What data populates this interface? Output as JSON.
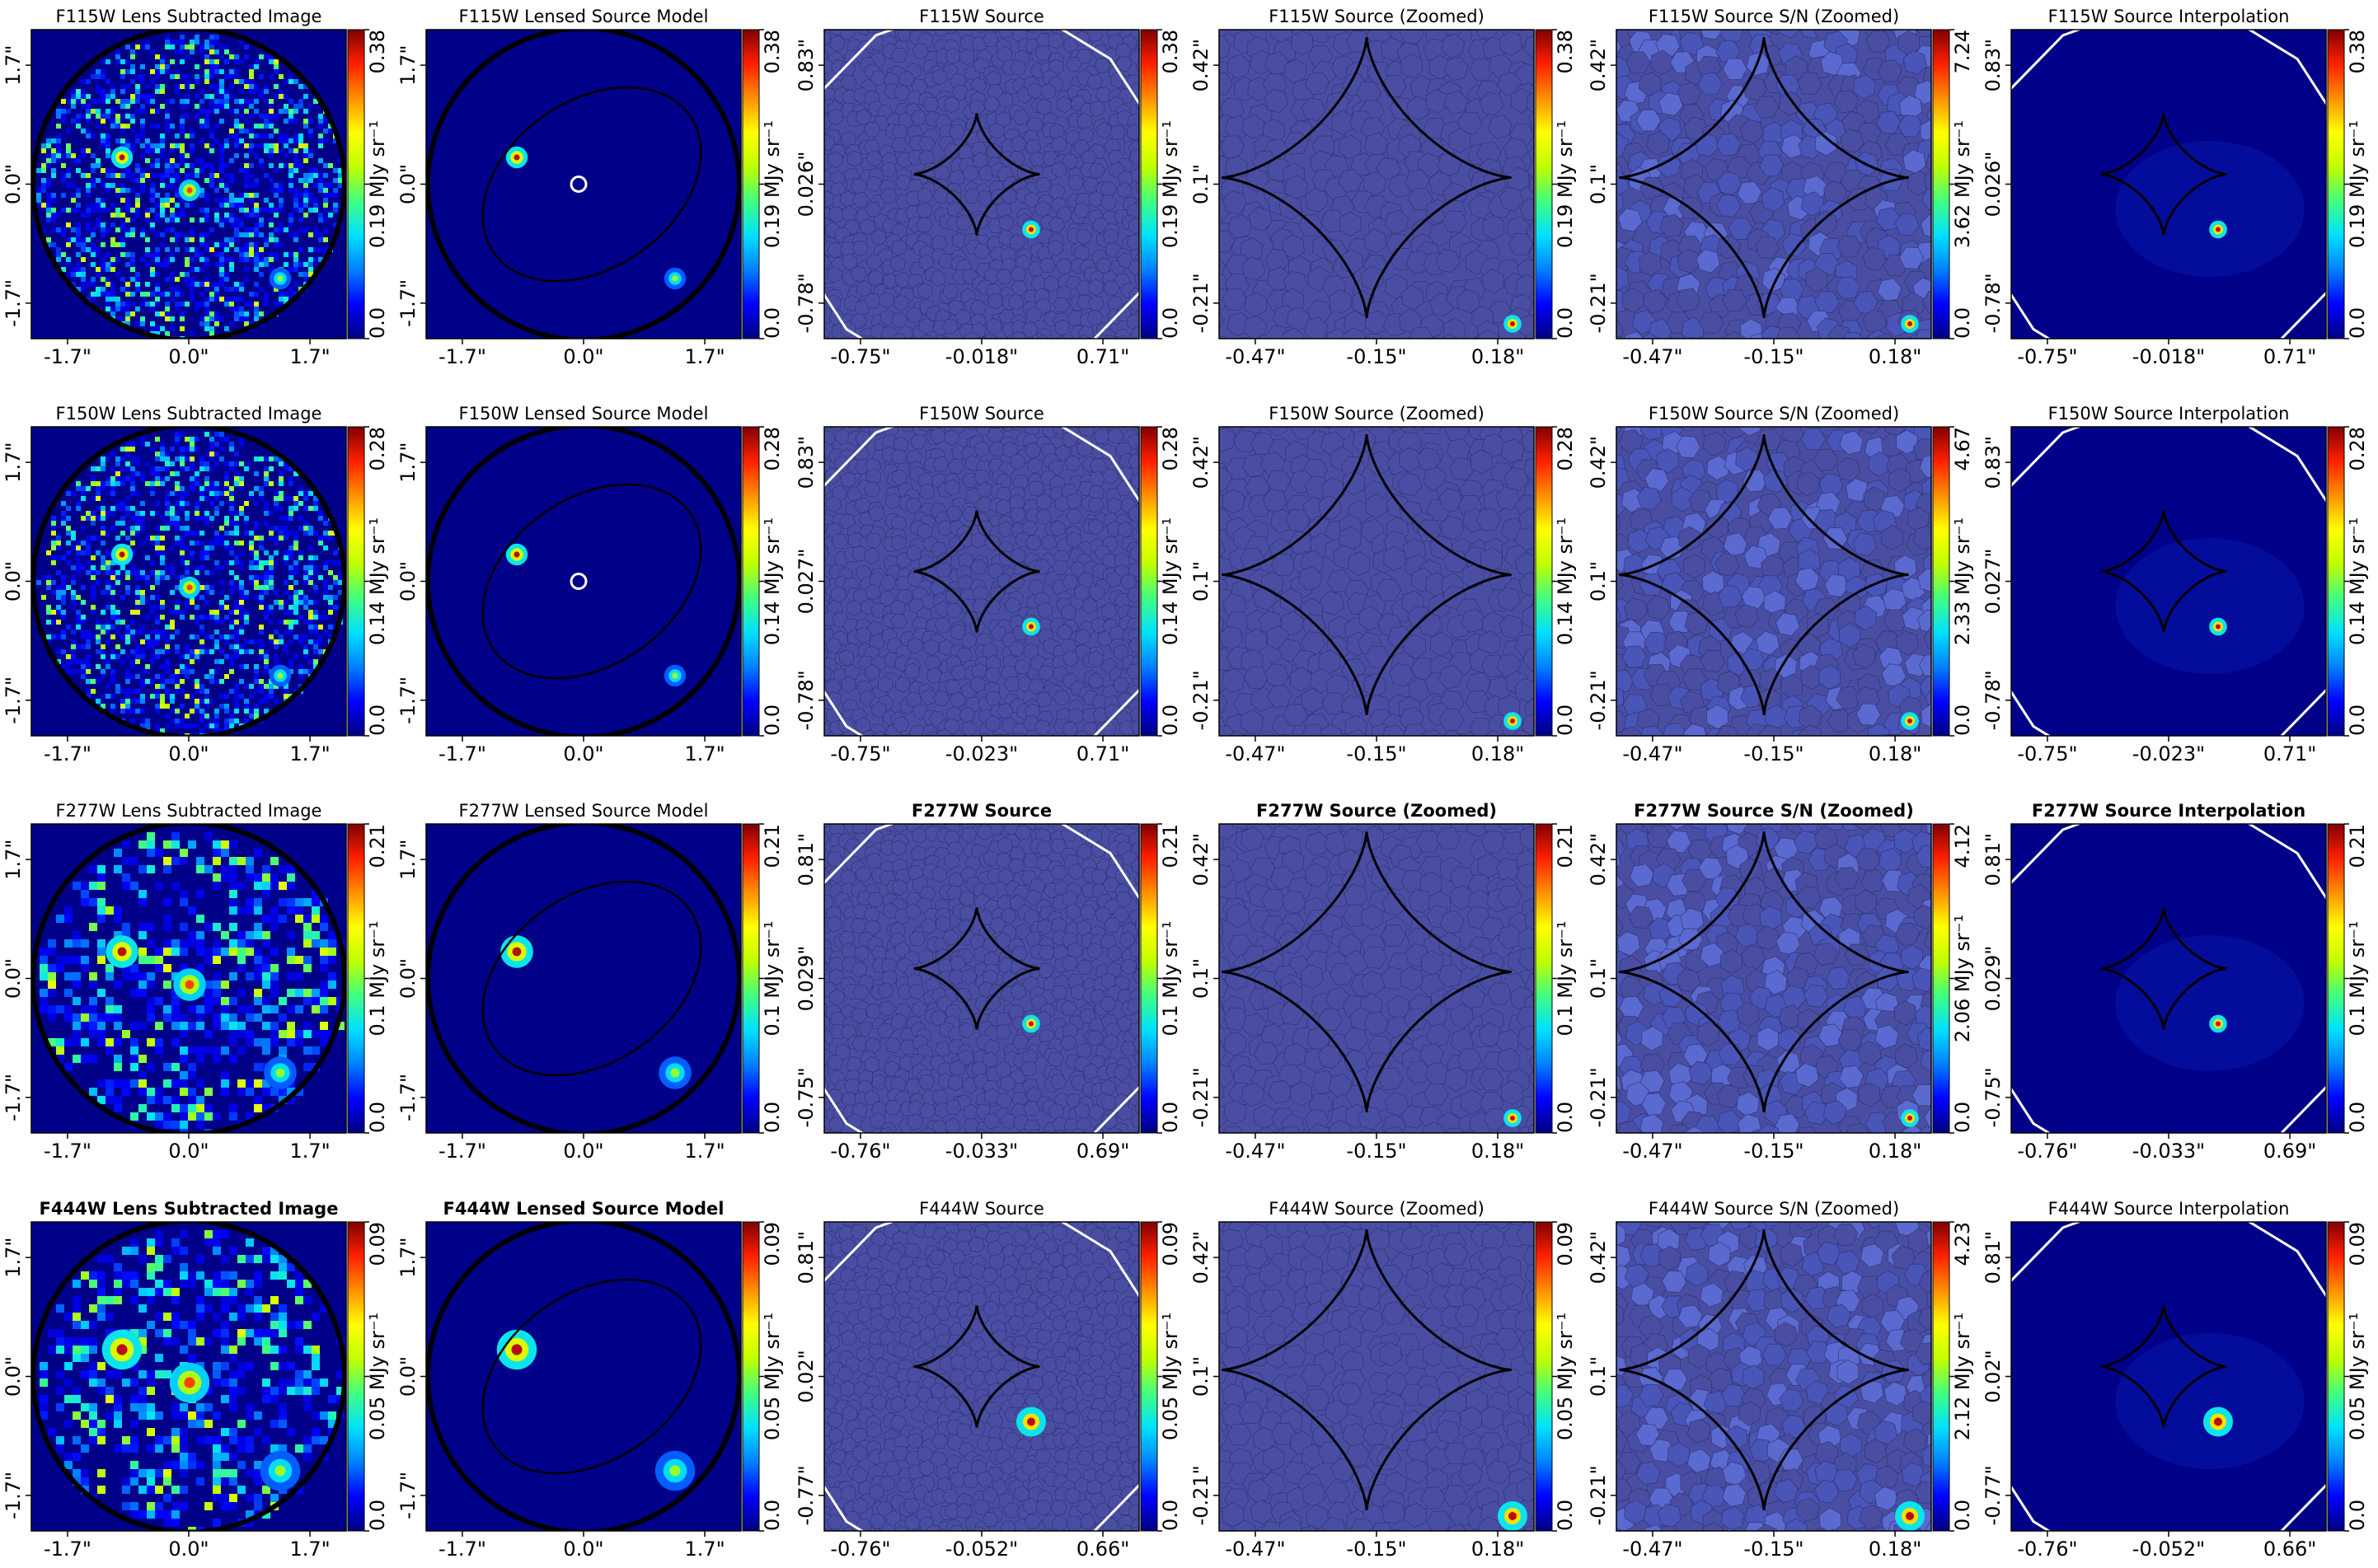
{
  "figure": {
    "colormap": [
      "#00007f",
      "#0000ff",
      "#0080ff",
      "#00e0ff",
      "#40ff80",
      "#c0ff00",
      "#ffff00",
      "#ff9000",
      "#ff2000",
      "#7f0000"
    ],
    "background_blue": "#000089",
    "voronoi_fill": "#4a4ea3",
    "cbar_unit": "MJy sr⁻¹"
  },
  "chart_data": [
    {
      "type": "heatmap",
      "row": 0,
      "col": 0,
      "kind": "image",
      "title": "F115W Lens Subtracted Image",
      "bold": false,
      "xticks": [
        "-1.7\"",
        "0.0\"",
        "1.7\""
      ],
      "yticks": [
        "1.7\"",
        "0.0\"",
        "-1.7\""
      ],
      "cbar": [
        "0.0",
        "0.19",
        "0.38"
      ],
      "cbar_label": "MJy sr⁻¹",
      "cbar_middle_with_unit": true
    },
    {
      "type": "heatmap",
      "row": 0,
      "col": 1,
      "kind": "model",
      "title": "F115W Lensed Source Model",
      "bold": false,
      "xticks": [
        "-1.7\"",
        "0.0\"",
        "1.7\""
      ],
      "yticks": [
        "1.7\"",
        "0.0\"",
        "-1.7\""
      ],
      "cbar": [
        "0.0",
        "0.19",
        "0.38"
      ]
    },
    {
      "type": "heatmap",
      "row": 0,
      "col": 2,
      "kind": "source",
      "title": "F115W Source",
      "bold": false,
      "xticks": [
        "-0.75\"",
        "-0.018\"",
        "0.71\""
      ],
      "yticks": [
        "0.83\"",
        "0.026\"",
        "-0.78\""
      ],
      "cbar": [
        "0.0",
        "0.19",
        "0.38"
      ]
    },
    {
      "type": "heatmap",
      "row": 0,
      "col": 3,
      "kind": "zoom",
      "title": "F115W Source (Zoomed)",
      "bold": false,
      "xticks": [
        "-0.47\"",
        "-0.15\"",
        "0.18\""
      ],
      "yticks": [
        "0.42\"",
        "0.1\"",
        "-0.21\""
      ],
      "cbar": [
        "0.0",
        "0.19",
        "0.38"
      ]
    },
    {
      "type": "heatmap",
      "row": 0,
      "col": 4,
      "kind": "sn",
      "title": "F115W Source S/N (Zoomed)",
      "bold": false,
      "xticks": [
        "-0.47\"",
        "-0.15\"",
        "0.18\""
      ],
      "yticks": [
        "0.42\"",
        "0.1\"",
        "-0.21\""
      ],
      "cbar": [
        "0.0",
        "3.62",
        "7.24"
      ]
    },
    {
      "type": "heatmap",
      "row": 0,
      "col": 5,
      "kind": "interp",
      "title": "F115W Source Interpolation",
      "bold": false,
      "xticks": [
        "-0.75\"",
        "-0.018\"",
        "0.71\""
      ],
      "yticks": [
        "0.83\"",
        "0.026\"",
        "-0.78\""
      ],
      "cbar": [
        "0.0",
        "0.19",
        "0.38"
      ]
    },
    {
      "type": "heatmap",
      "row": 1,
      "col": 0,
      "kind": "image",
      "title": "F150W Lens Subtracted Image",
      "bold": false,
      "xticks": [
        "-1.7\"",
        "0.0\"",
        "1.7\""
      ],
      "yticks": [
        "1.7\"",
        "0.0\"",
        "-1.7\""
      ],
      "cbar": [
        "0.0",
        "0.14",
        "0.28"
      ]
    },
    {
      "type": "heatmap",
      "row": 1,
      "col": 1,
      "kind": "model",
      "title": "F150W Lensed Source Model",
      "bold": false,
      "xticks": [
        "-1.7\"",
        "0.0\"",
        "1.7\""
      ],
      "yticks": [
        "1.7\"",
        "0.0\"",
        "-1.7\""
      ],
      "cbar": [
        "0.0",
        "0.14",
        "0.28"
      ]
    },
    {
      "type": "heatmap",
      "row": 1,
      "col": 2,
      "kind": "source",
      "title": "F150W Source",
      "bold": false,
      "xticks": [
        "-0.75\"",
        "-0.023\"",
        "0.71\""
      ],
      "yticks": [
        "0.83\"",
        "0.027\"",
        "-0.78\""
      ],
      "cbar": [
        "0.0",
        "0.14",
        "0.28"
      ]
    },
    {
      "type": "heatmap",
      "row": 1,
      "col": 3,
      "kind": "zoom",
      "title": "F150W Source (Zoomed)",
      "bold": false,
      "xticks": [
        "-0.47\"",
        "-0.15\"",
        "0.18\""
      ],
      "yticks": [
        "0.42\"",
        "0.1\"",
        "-0.21\""
      ],
      "cbar": [
        "0.0",
        "0.14",
        "0.28"
      ]
    },
    {
      "type": "heatmap",
      "row": 1,
      "col": 4,
      "kind": "sn",
      "title": "F150W Source S/N (Zoomed)",
      "bold": false,
      "xticks": [
        "-0.47\"",
        "-0.15\"",
        "0.18\""
      ],
      "yticks": [
        "0.42\"",
        "0.1\"",
        "-0.21\""
      ],
      "cbar": [
        "0.0",
        "2.33",
        "4.67"
      ]
    },
    {
      "type": "heatmap",
      "row": 1,
      "col": 5,
      "kind": "interp",
      "title": "F150W Source Interpolation",
      "bold": false,
      "xticks": [
        "-0.75\"",
        "-0.023\"",
        "0.71\""
      ],
      "yticks": [
        "0.83\"",
        "0.027\"",
        "-0.78\""
      ],
      "cbar": [
        "0.0",
        "0.14",
        "0.28"
      ]
    },
    {
      "type": "heatmap",
      "row": 2,
      "col": 0,
      "kind": "image",
      "title": "F277W Lens Subtracted Image",
      "bold": false,
      "xticks": [
        "-1.7\"",
        "0.0\"",
        "1.7\""
      ],
      "yticks": [
        "1.7\"",
        "0.0\"",
        "-1.7\""
      ],
      "cbar": [
        "0.0",
        "0.1",
        "0.21"
      ]
    },
    {
      "type": "heatmap",
      "row": 2,
      "col": 1,
      "kind": "model",
      "title": "F277W Lensed Source Model",
      "bold": false,
      "xticks": [
        "-1.7\"",
        "0.0\"",
        "1.7\""
      ],
      "yticks": [
        "1.7\"",
        "0.0\"",
        "-1.7\""
      ],
      "cbar": [
        "0.0",
        "0.1",
        "0.21"
      ]
    },
    {
      "type": "heatmap",
      "row": 2,
      "col": 2,
      "kind": "source",
      "title": "F277W Source",
      "bold": true,
      "xticks": [
        "-0.76\"",
        "-0.033\"",
        "0.69\""
      ],
      "yticks": [
        "0.81\"",
        "0.029\"",
        "-0.75\""
      ],
      "cbar": [
        "0.0",
        "0.1",
        "0.21"
      ]
    },
    {
      "type": "heatmap",
      "row": 2,
      "col": 3,
      "kind": "zoom",
      "title": "F277W Source (Zoomed)",
      "bold": true,
      "xticks": [
        "-0.47\"",
        "-0.15\"",
        "0.18\""
      ],
      "yticks": [
        "0.42\"",
        "0.1\"",
        "-0.21\""
      ],
      "cbar": [
        "0.0",
        "0.1",
        "0.21"
      ]
    },
    {
      "type": "heatmap",
      "row": 2,
      "col": 4,
      "kind": "sn",
      "title": "F277W Source S/N (Zoomed)",
      "bold": true,
      "xticks": [
        "-0.47\"",
        "-0.15\"",
        "0.18\""
      ],
      "yticks": [
        "0.42\"",
        "0.1\"",
        "-0.21\""
      ],
      "cbar": [
        "0.0",
        "2.06",
        "4.12"
      ]
    },
    {
      "type": "heatmap",
      "row": 2,
      "col": 5,
      "kind": "interp",
      "title": "F277W Source Interpolation",
      "bold": true,
      "xticks": [
        "-0.76\"",
        "-0.033\"",
        "0.69\""
      ],
      "yticks": [
        "0.81\"",
        "0.029\"",
        "-0.75\""
      ],
      "cbar": [
        "0.0",
        "0.1",
        "0.21"
      ]
    },
    {
      "type": "heatmap",
      "row": 3,
      "col": 0,
      "kind": "image",
      "title": "F444W Lens Subtracted Image",
      "bold": true,
      "xticks": [
        "-1.7\"",
        "0.0\"",
        "1.7\""
      ],
      "yticks": [
        "1.7\"",
        "0.0\"",
        "-1.7\""
      ],
      "cbar": [
        "0.0",
        "0.05",
        "0.09"
      ]
    },
    {
      "type": "heatmap",
      "row": 3,
      "col": 1,
      "kind": "model",
      "title": "F444W Lensed Source Model",
      "bold": true,
      "xticks": [
        "-1.7\"",
        "0.0\"",
        "1.7\""
      ],
      "yticks": [
        "1.7\"",
        "0.0\"",
        "-1.7\""
      ],
      "cbar": [
        "0.0",
        "0.05",
        "0.09"
      ]
    },
    {
      "type": "heatmap",
      "row": 3,
      "col": 2,
      "kind": "source",
      "title": "F444W Source",
      "bold": false,
      "xticks": [
        "-0.76\"",
        "-0.052\"",
        "0.66\""
      ],
      "yticks": [
        "0.81\"",
        "0.02\"",
        "-0.77\""
      ],
      "cbar": [
        "0.0",
        "0.05",
        "0.09"
      ]
    },
    {
      "type": "heatmap",
      "row": 3,
      "col": 3,
      "kind": "zoom",
      "title": "F444W Source (Zoomed)",
      "bold": false,
      "xticks": [
        "-0.47\"",
        "-0.15\"",
        "0.18\""
      ],
      "yticks": [
        "0.42\"",
        "0.1\"",
        "-0.21\""
      ],
      "cbar": [
        "0.0",
        "0.05",
        "0.09"
      ]
    },
    {
      "type": "heatmap",
      "row": 3,
      "col": 4,
      "kind": "sn",
      "title": "F444W Source S/N (Zoomed)",
      "bold": false,
      "xticks": [
        "-0.47\"",
        "-0.15\"",
        "0.18\""
      ],
      "yticks": [
        "0.42\"",
        "0.1\"",
        "-0.21\""
      ],
      "cbar": [
        "0.0",
        "2.12",
        "4.23"
      ]
    },
    {
      "type": "heatmap",
      "row": 3,
      "col": 5,
      "kind": "interp",
      "title": "F444W Source Interpolation",
      "bold": false,
      "xticks": [
        "-0.76\"",
        "-0.052\"",
        "0.66\""
      ],
      "yticks": [
        "0.81\"",
        "0.02\"",
        "-0.77\""
      ],
      "cbar": [
        "0.0",
        "0.05",
        "0.09"
      ]
    }
  ]
}
